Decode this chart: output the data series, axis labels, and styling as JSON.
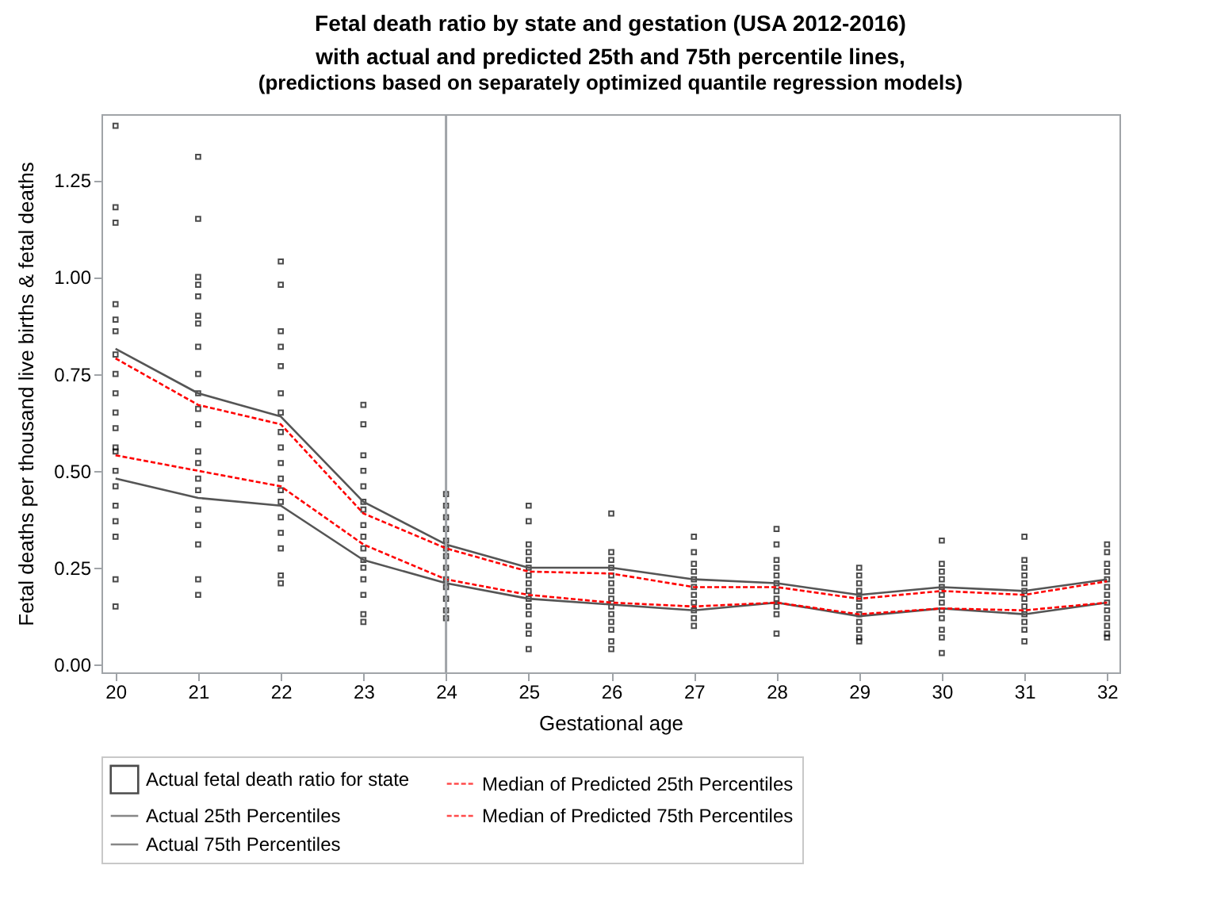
{
  "chart_data": {
    "type": "line",
    "title": "Fetal death ratio by state and gestation (USA 2012-2016)\nwith actual and predicted 25th and 75th percentile lines,",
    "subtitle": "(predictions based on separately optimized quantile regression models)",
    "xlabel": "Gestational age",
    "ylabel": "Fetal deaths per thousand live births & fetal deaths",
    "xlim": [
      19.83,
      32.15
    ],
    "xticks": [
      20,
      21,
      22,
      23,
      24,
      25,
      26,
      27,
      28,
      29,
      30,
      31,
      32
    ],
    "ylim": [
      -0.02,
      1.42
    ],
    "yticks": [
      {
        "value": 0,
        "label": "0.00"
      },
      0.25,
      {
        "value": 0.5,
        "label": "0.50"
      },
      0.75,
      {
        "value": 1,
        "label": "1.00"
      },
      1.25
    ],
    "grid": false,
    "legend": "bottom",
    "ref_lines": [
      {
        "axis": "x",
        "value": 24,
        "color": "#a0a4a8"
      }
    ],
    "series": [
      {
        "name": "Actual fetal death ratio for state",
        "type": "scatter",
        "marker": "square",
        "color": "#000000",
        "x": [
          20,
          20,
          20,
          20,
          20,
          20,
          20,
          20,
          20,
          20,
          20,
          20,
          20,
          20,
          20,
          20,
          20,
          20,
          20,
          20,
          21,
          21,
          21,
          21,
          21,
          21,
          21,
          21,
          21,
          21,
          21,
          21,
          21,
          21,
          21,
          21,
          21,
          21,
          21,
          21,
          21,
          22,
          22,
          22,
          22,
          22,
          22,
          22,
          22,
          22,
          22,
          22,
          22,
          22,
          22,
          22,
          22,
          22,
          22,
          23,
          23,
          23,
          23,
          23,
          23,
          23,
          23,
          23,
          23,
          23,
          23,
          23,
          23,
          23,
          23,
          24,
          24,
          24,
          24,
          24,
          24,
          24,
          24,
          24,
          24,
          24,
          24,
          24,
          25,
          25,
          25,
          25,
          25,
          25,
          25,
          25,
          25,
          25,
          25,
          25,
          25,
          25,
          25,
          26,
          26,
          26,
          26,
          26,
          26,
          26,
          26,
          26,
          26,
          26,
          26,
          26,
          26,
          27,
          27,
          27,
          27,
          27,
          27,
          27,
          27,
          27,
          27,
          27,
          28,
          28,
          28,
          28,
          28,
          28,
          28,
          28,
          28,
          28,
          28,
          29,
          29,
          29,
          29,
          29,
          29,
          29,
          29,
          29,
          29,
          29,
          30,
          30,
          30,
          30,
          30,
          30,
          30,
          30,
          30,
          30,
          30,
          30,
          31,
          31,
          31,
          31,
          31,
          31,
          31,
          31,
          31,
          31,
          31,
          31,
          32,
          32,
          32,
          32,
          32,
          32,
          32,
          32,
          32,
          32,
          32,
          32,
          32
        ],
        "values": [
          1.39,
          1.18,
          1.14,
          0.93,
          0.89,
          0.86,
          0.8,
          0.75,
          0.7,
          0.65,
          0.61,
          0.56,
          0.5,
          0.46,
          0.41,
          0.37,
          0.33,
          0.22,
          0.15,
          0.55,
          1.31,
          1.15,
          1.0,
          0.98,
          0.95,
          0.9,
          0.88,
          0.82,
          0.75,
          0.7,
          0.66,
          0.62,
          0.55,
          0.52,
          0.48,
          0.45,
          0.4,
          0.36,
          0.31,
          0.22,
          0.18,
          1.04,
          0.98,
          0.86,
          0.82,
          0.77,
          0.7,
          0.65,
          0.6,
          0.56,
          0.52,
          0.48,
          0.45,
          0.42,
          0.38,
          0.34,
          0.3,
          0.23,
          0.21,
          0.67,
          0.62,
          0.54,
          0.5,
          0.46,
          0.42,
          0.4,
          0.36,
          0.33,
          0.3,
          0.27,
          0.25,
          0.22,
          0.18,
          0.13,
          0.11,
          0.44,
          0.41,
          0.38,
          0.35,
          0.32,
          0.3,
          0.28,
          0.25,
          0.22,
          0.2,
          0.17,
          0.14,
          0.12,
          0.41,
          0.37,
          0.31,
          0.29,
          0.27,
          0.25,
          0.23,
          0.21,
          0.19,
          0.17,
          0.15,
          0.13,
          0.1,
          0.08,
          0.04,
          0.39,
          0.29,
          0.27,
          0.25,
          0.23,
          0.21,
          0.19,
          0.17,
          0.15,
          0.13,
          0.11,
          0.09,
          0.06,
          0.04,
          0.33,
          0.29,
          0.26,
          0.24,
          0.22,
          0.2,
          0.18,
          0.16,
          0.14,
          0.12,
          0.1,
          0.35,
          0.31,
          0.27,
          0.25,
          0.23,
          0.21,
          0.19,
          0.17,
          0.15,
          0.13,
          0.08,
          0.25,
          0.23,
          0.21,
          0.19,
          0.17,
          0.15,
          0.13,
          0.11,
          0.09,
          0.07,
          0.06,
          0.32,
          0.26,
          0.24,
          0.22,
          0.2,
          0.18,
          0.16,
          0.14,
          0.12,
          0.09,
          0.07,
          0.03,
          0.33,
          0.27,
          0.25,
          0.23,
          0.21,
          0.19,
          0.17,
          0.15,
          0.13,
          0.11,
          0.09,
          0.06,
          0.31,
          0.29,
          0.26,
          0.24,
          0.22,
          0.2,
          0.18,
          0.16,
          0.14,
          0.12,
          0.1,
          0.08,
          0.07
        ]
      },
      {
        "name": "Actual 25th Percentiles",
        "type": "line",
        "line_style": "solid",
        "color": "#555555",
        "x": [
          20,
          21,
          22,
          23,
          24,
          25,
          26,
          27,
          28,
          29,
          30,
          31,
          32
        ],
        "values": [
          0.48,
          0.43,
          0.41,
          0.27,
          0.21,
          0.17,
          0.155,
          0.14,
          0.16,
          0.125,
          0.145,
          0.13,
          0.16
        ]
      },
      {
        "name": "Actual 75th Percentiles",
        "type": "line",
        "line_style": "solid",
        "color": "#555555",
        "x": [
          20,
          21,
          22,
          23,
          24,
          25,
          26,
          27,
          28,
          29,
          30,
          31,
          32
        ],
        "values": [
          0.815,
          0.7,
          0.64,
          0.42,
          0.31,
          0.25,
          0.25,
          0.22,
          0.21,
          0.18,
          0.2,
          0.19,
          0.22
        ]
      },
      {
        "name": "Median of Predicted 25th Percentiles",
        "type": "line",
        "line_style": "dashed",
        "color": "#ff0000",
        "x": [
          20,
          21,
          22,
          23,
          24,
          25,
          26,
          27,
          28,
          29,
          30,
          31,
          32
        ],
        "values": [
          0.54,
          0.5,
          0.46,
          0.31,
          0.22,
          0.18,
          0.16,
          0.15,
          0.16,
          0.13,
          0.145,
          0.14,
          0.16
        ]
      },
      {
        "name": "Median of Predicted 75th Percentiles",
        "type": "line",
        "line_style": "dashed",
        "color": "#ff0000",
        "x": [
          20,
          21,
          22,
          23,
          24,
          25,
          26,
          27,
          28,
          29,
          30,
          31,
          32
        ],
        "values": [
          0.79,
          0.67,
          0.62,
          0.39,
          0.3,
          0.24,
          0.235,
          0.2,
          0.2,
          0.17,
          0.19,
          0.18,
          0.215
        ]
      }
    ]
  }
}
